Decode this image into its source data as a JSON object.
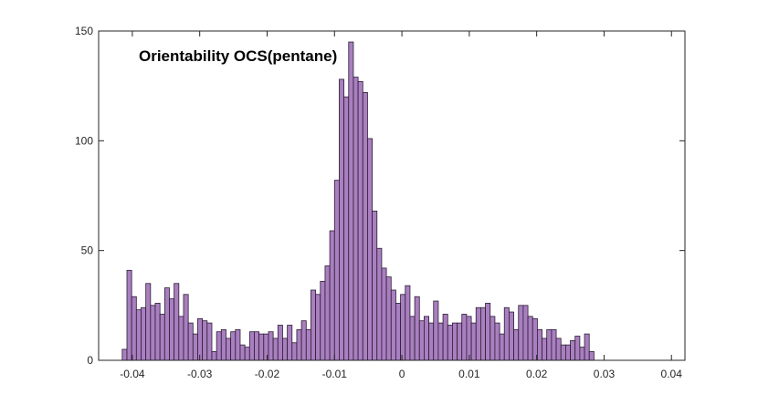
{
  "chart_data": {
    "type": "bar",
    "title": "Orientability OCS(pentane)",
    "xlabel": "",
    "ylabel": "",
    "xlim": [
      -0.045,
      0.042
    ],
    "ylim": [
      0,
      150
    ],
    "bin_start": -0.0415,
    "bin_width": 0.0007,
    "grid": false,
    "legend": "none",
    "x_ticks": [
      {
        "value": -0.04,
        "label": "-0.04"
      },
      {
        "value": -0.03,
        "label": "-0.03"
      },
      {
        "value": -0.02,
        "label": "-0.02"
      },
      {
        "value": -0.01,
        "label": "-0.01"
      },
      {
        "value": 0,
        "label": "0"
      },
      {
        "value": 0.01,
        "label": "0.01"
      },
      {
        "value": 0.02,
        "label": "0.02"
      },
      {
        "value": 0.03,
        "label": "0.03"
      },
      {
        "value": 0.04,
        "label": "0.04"
      }
    ],
    "y_ticks": [
      {
        "value": 0,
        "label": "0"
      },
      {
        "value": 50,
        "label": "50"
      },
      {
        "value": 100,
        "label": "100"
      },
      {
        "value": 150,
        "label": "150"
      }
    ],
    "values": [
      5,
      41,
      29,
      23,
      24,
      35,
      25,
      26,
      21,
      33,
      28,
      35,
      20,
      30,
      17,
      12,
      19,
      18,
      17,
      4,
      13,
      14,
      10,
      13,
      14,
      7,
      6,
      13,
      13,
      12,
      12,
      13,
      10,
      16,
      10,
      16,
      8,
      14,
      18,
      14,
      32,
      30,
      36,
      43,
      59,
      82,
      128,
      120,
      145,
      129,
      127,
      122,
      101,
      68,
      51,
      42,
      38,
      32,
      26,
      30,
      34,
      20,
      29,
      18,
      20,
      17,
      27,
      17,
      21,
      16,
      17,
      17,
      21,
      20,
      17,
      24,
      24,
      26,
      20,
      17,
      12,
      24,
      22,
      14,
      25,
      25,
      20,
      19,
      14,
      10,
      14,
      14,
      10,
      7,
      7,
      9,
      11,
      6,
      12,
      4
    ],
    "colors": {
      "bar_fill": "#a97fc0",
      "bar_edge": "#2b1d33",
      "axis": "#262626",
      "background": "#ffffff"
    }
  }
}
